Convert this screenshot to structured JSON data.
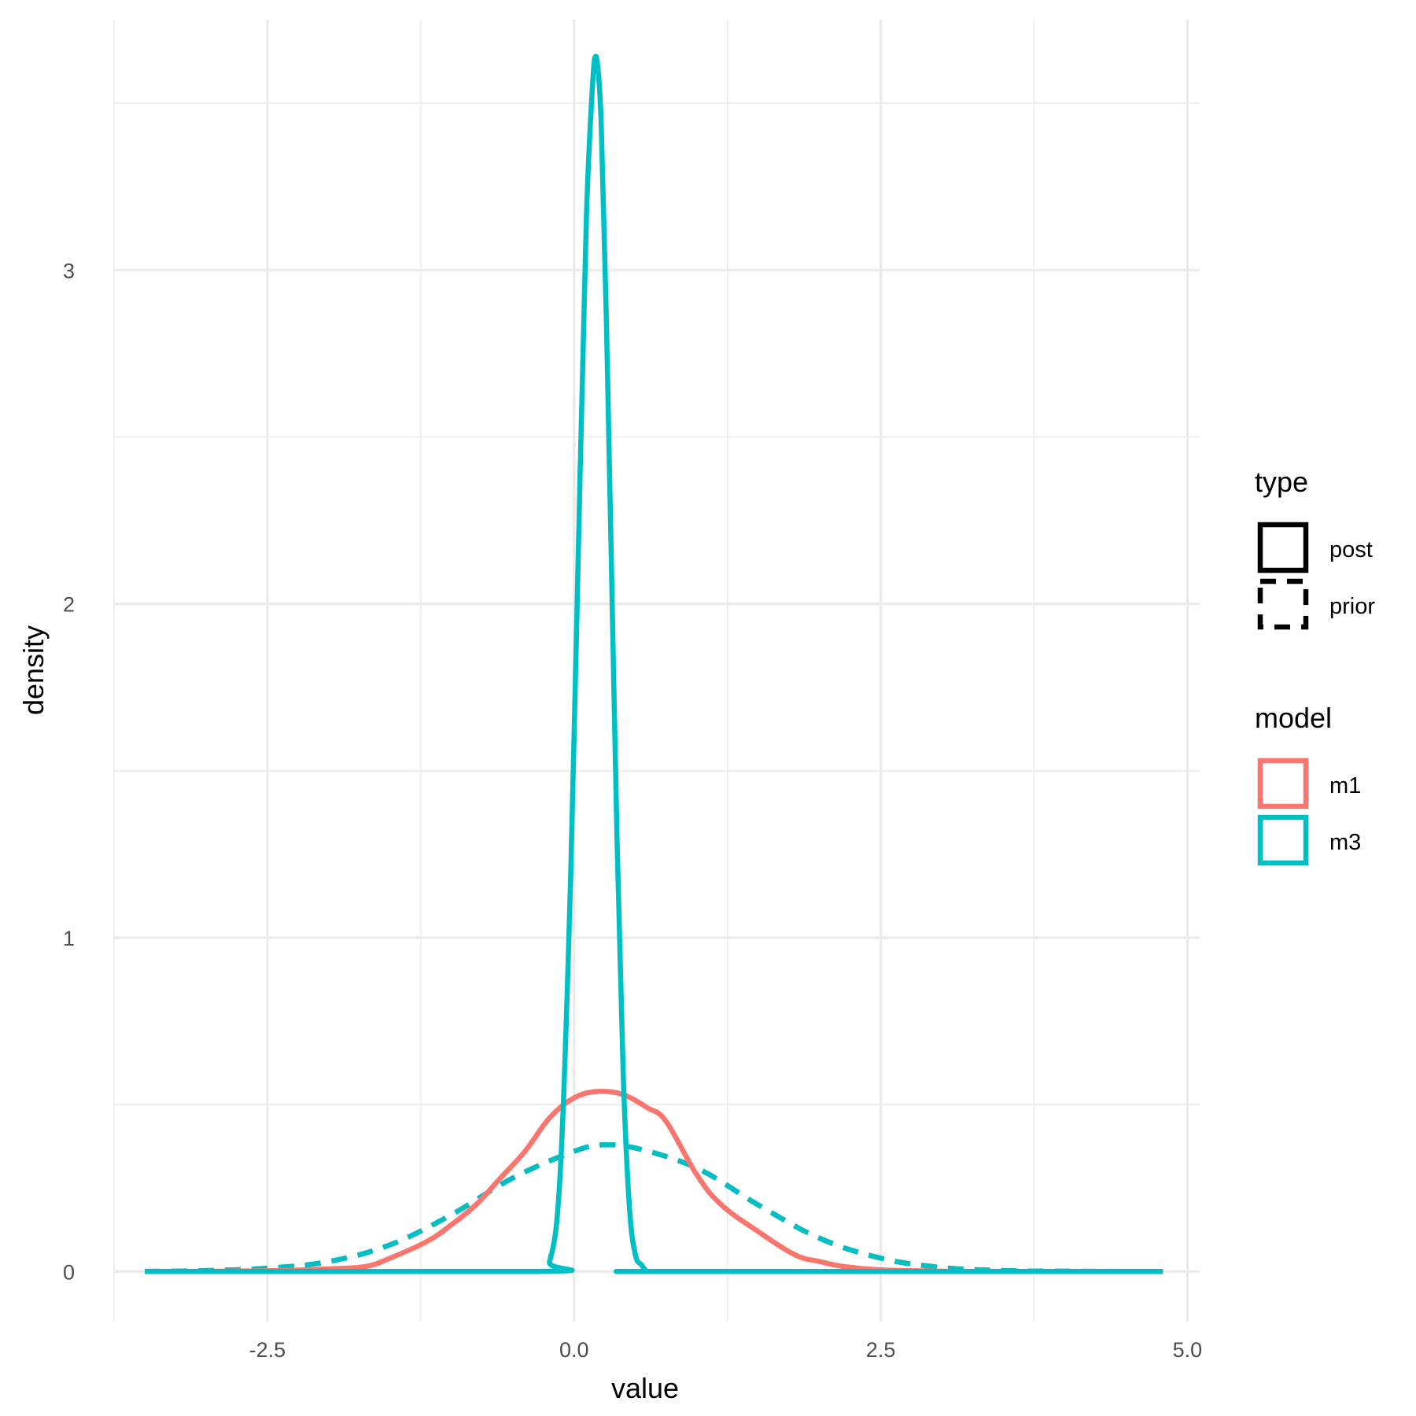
{
  "chart_data": {
    "type": "line",
    "xlabel": "value",
    "ylabel": "density",
    "xlim": [
      -3.75,
      5.1
    ],
    "ylim": [
      -0.15,
      3.75
    ],
    "x_ticks": [
      -2.5,
      0.0,
      2.5,
      5.0
    ],
    "x_tick_labels": [
      "-2.5",
      "0.0",
      "2.5",
      "5.0"
    ],
    "y_ticks": [
      0,
      1,
      2,
      3
    ],
    "y_tick_labels": [
      "0",
      "1",
      "2",
      "3"
    ],
    "grid": true,
    "legend_position": "right",
    "legends": [
      {
        "title": "type",
        "entries": [
          {
            "label": "post",
            "linetype": "solid"
          },
          {
            "label": "prior",
            "linetype": "dashed"
          }
        ]
      },
      {
        "title": "model",
        "entries": [
          {
            "label": "m1",
            "color": "#F8766D"
          },
          {
            "label": "m3",
            "color": "#00BFC4"
          }
        ]
      }
    ],
    "series": [
      {
        "model": "m1",
        "type": "prior",
        "color": "#F8766D",
        "linetype": "dashed",
        "x": [
          -3.5,
          -3.0,
          -2.5,
          -2.0,
          -1.5,
          -1.0,
          -0.5,
          0.0,
          0.25,
          0.5,
          1.0,
          1.5,
          2.0,
          2.5,
          3.0,
          3.5,
          4.0,
          4.8
        ],
        "y": [
          0.0,
          0.003,
          0.01,
          0.03,
          0.08,
          0.17,
          0.28,
          0.36,
          0.38,
          0.37,
          0.31,
          0.2,
          0.1,
          0.04,
          0.012,
          0.003,
          0.001,
          0.0
        ]
      },
      {
        "model": "m3",
        "type": "prior",
        "color": "#00BFC4",
        "linetype": "dashed",
        "x": [
          -3.5,
          -3.0,
          -2.5,
          -2.0,
          -1.5,
          -1.0,
          -0.5,
          0.0,
          0.25,
          0.5,
          1.0,
          1.5,
          2.0,
          2.5,
          3.0,
          3.5,
          4.0,
          4.8
        ],
        "y": [
          0.0,
          0.003,
          0.01,
          0.03,
          0.08,
          0.17,
          0.28,
          0.36,
          0.38,
          0.37,
          0.31,
          0.2,
          0.1,
          0.04,
          0.012,
          0.003,
          0.001,
          0.0
        ]
      },
      {
        "model": "m1",
        "type": "post",
        "color": "#F8766D",
        "linetype": "solid",
        "x": [
          -3.5,
          -2.5,
          -2.0,
          -1.7,
          -1.5,
          -1.2,
          -1.0,
          -0.8,
          -0.6,
          -0.4,
          -0.2,
          0.0,
          0.2,
          0.4,
          0.6,
          0.75,
          1.0,
          1.2,
          1.5,
          1.8,
          2.0,
          2.2,
          2.5,
          3.0,
          3.5,
          4.8
        ],
        "y": [
          0.0,
          0.002,
          0.008,
          0.015,
          0.04,
          0.09,
          0.14,
          0.2,
          0.28,
          0.36,
          0.46,
          0.52,
          0.54,
          0.53,
          0.49,
          0.45,
          0.29,
          0.2,
          0.12,
          0.05,
          0.03,
          0.015,
          0.005,
          0.001,
          0.0,
          0.0
        ]
      },
      {
        "model": "m3",
        "type": "post",
        "color": "#00BFC4",
        "linetype": "solid",
        "x": [
          -3.5,
          -0.3,
          -0.2,
          -0.12,
          -0.05,
          0.0,
          0.05,
          0.1,
          0.15,
          0.18,
          0.22,
          0.26,
          0.3,
          0.35,
          0.4,
          0.45,
          0.5,
          0.55,
          0.6,
          0.7,
          4.8
        ],
        "y": [
          0.0,
          0.0,
          0.03,
          0.25,
          0.9,
          1.6,
          2.4,
          3.15,
          3.55,
          3.64,
          3.45,
          2.9,
          2.2,
          1.3,
          0.6,
          0.2,
          0.05,
          0.02,
          0.0,
          0.0,
          0.0
        ]
      }
    ]
  }
}
